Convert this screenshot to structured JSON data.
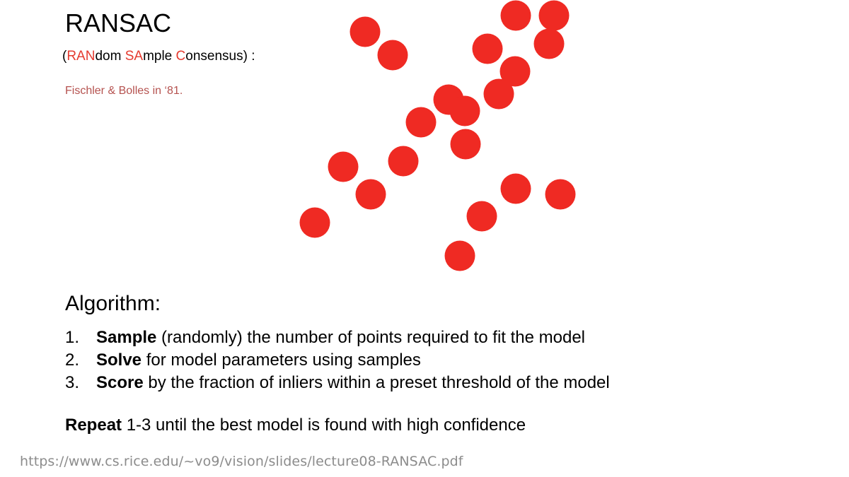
{
  "slide": {
    "title": "RANSAC",
    "subtitle": {
      "open": "(",
      "p1": "RAN",
      "p2": "dom ",
      "p3": "SA",
      "p4": "mple ",
      "p5": "C",
      "p6": "onsensus) :"
    },
    "credit": "Fischler & Bolles in ‘81.",
    "algorithm_heading": "Algorithm:",
    "steps": [
      {
        "num": "1.",
        "bold": "Sample",
        "rest": " (randomly) the number of points required to fit the model"
      },
      {
        "num": "2.",
        "bold": "Solve",
        "rest": " for model parameters using samples"
      },
      {
        "num": "3.",
        "bold": "Score",
        "rest": " by the fraction of inliers within a preset threshold of the model"
      }
    ],
    "repeat": {
      "bold": "Repeat",
      "rest": " 1-3 until the best model is found with high confidence"
    },
    "source_url": "https://www.cs.rice.edu/~vo9/vision/slides/lecture08-RANSAC.pdf"
  },
  "colors": {
    "point": "#ef2a23",
    "accent": "#e53a2f",
    "credit": "#b5524f"
  }
}
